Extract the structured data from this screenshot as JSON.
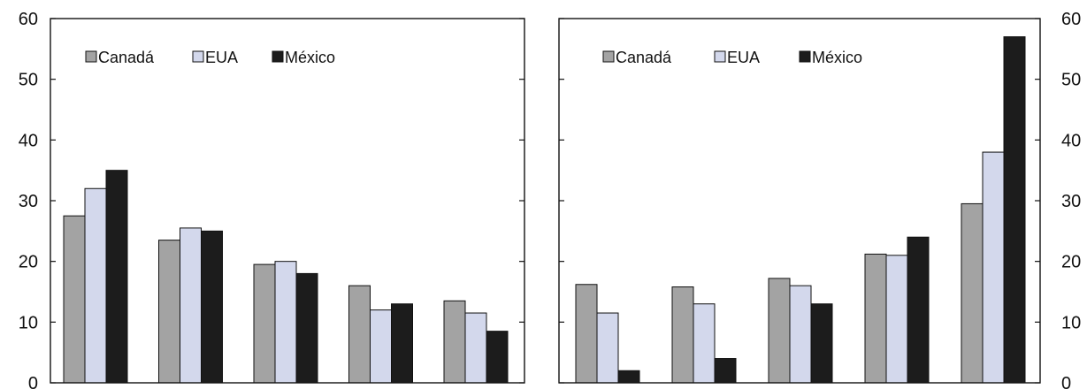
{
  "chart_data": [
    {
      "type": "bar",
      "title": "",
      "xlabel": "",
      "ylabel": "",
      "ylim": [
        0,
        60
      ],
      "yticks": [
        "0",
        "10",
        "20",
        "30",
        "40",
        "50",
        "60"
      ],
      "categories": [
        "",
        "",
        "",
        "",
        ""
      ],
      "legend_position": "top-left",
      "grid": false,
      "series": [
        {
          "name": "Canadá",
          "color": "#a3a3a3",
          "values": [
            27.5,
            23.5,
            19.5,
            16,
            13.5
          ]
        },
        {
          "name": "EUA",
          "color": "#d3d8ec",
          "values": [
            32,
            25.5,
            20,
            12,
            11.5
          ]
        },
        {
          "name": "México",
          "color": "#1c1c1c",
          "values": [
            35,
            25,
            18,
            13,
            8.5
          ]
        }
      ]
    },
    {
      "type": "bar",
      "title": "",
      "xlabel": "",
      "ylabel": "",
      "ylim": [
        0,
        60
      ],
      "yticks": [
        "0",
        "10",
        "20",
        "30",
        "40",
        "50",
        "60"
      ],
      "categories": [
        "",
        "",
        "",
        "",
        ""
      ],
      "legend_position": "top-left",
      "grid": false,
      "series": [
        {
          "name": "Canadá",
          "color": "#a3a3a3",
          "values": [
            16.2,
            15.8,
            17.2,
            21.2,
            29.5
          ]
        },
        {
          "name": "EUA",
          "color": "#d3d8ec",
          "values": [
            11.5,
            13,
            16,
            21,
            38
          ]
        },
        {
          "name": "México",
          "color": "#1c1c1c",
          "values": [
            2,
            4,
            13,
            24,
            57
          ]
        }
      ]
    }
  ]
}
